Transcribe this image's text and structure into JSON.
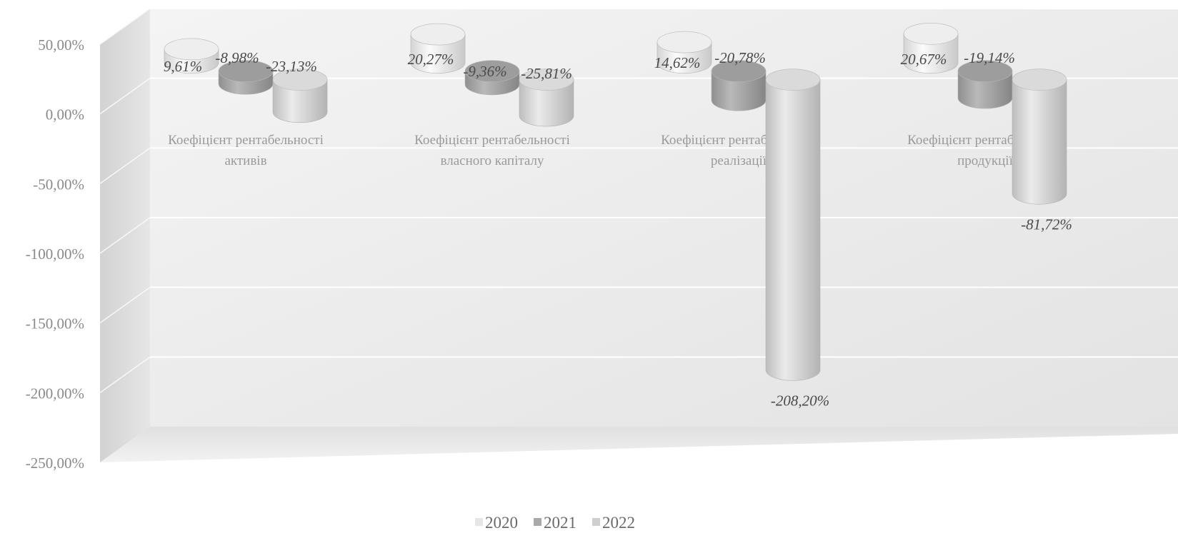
{
  "chart_data": {
    "type": "bar",
    "bar_shape": "3d-cylinder",
    "categories": [
      [
        "Коефіцієнт рентабельності",
        "активів"
      ],
      [
        "Коефіцієнт рентабельності",
        "власного капіталу"
      ],
      [
        "Коефіцієнт рентабельності",
        "реалізації"
      ],
      [
        "Коефіцієнт рентабельності",
        "продукції"
      ]
    ],
    "series": [
      {
        "name": "2020",
        "values": [
          9.61,
          20.27,
          14.62,
          20.67
        ],
        "labels": [
          "9,61%",
          "20,27%",
          "14,62%",
          "20,67%"
        ],
        "color": "#e6e6e6"
      },
      {
        "name": "2021",
        "values": [
          -8.98,
          -9.36,
          -20.78,
          -19.14
        ],
        "labels": [
          "-8,98%",
          "-9,36%",
          "-20,78%",
          "-19,14%"
        ],
        "color": "#a9a9a9"
      },
      {
        "name": "2022",
        "values": [
          -23.13,
          -25.81,
          -208.2,
          -81.72
        ],
        "labels": [
          "-23,13%",
          "-25,81%",
          "-208,20%",
          "-81,72%"
        ],
        "color": "#cfcfcf"
      }
    ],
    "y_ticks": [
      50,
      0,
      -50,
      -100,
      -150,
      -200,
      -250
    ],
    "y_tick_labels": [
      "50,00%",
      "0,00%",
      "-50,00%",
      "-100,00%",
      "-150,00%",
      "-200,00%",
      "-250,00%"
    ],
    "ylim": [
      -250,
      50
    ],
    "title": "",
    "xlabel": "",
    "ylabel": "",
    "grid": true,
    "legend_position": "bottom"
  }
}
